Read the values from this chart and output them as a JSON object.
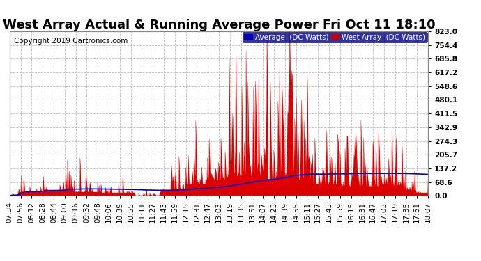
{
  "title": "West Array Actual & Running Average Power Fri Oct 11 18:10",
  "copyright": "Copyright 2019 Cartronics.com",
  "yticks": [
    0.0,
    68.6,
    137.2,
    205.7,
    274.3,
    342.9,
    411.5,
    480.1,
    548.6,
    617.2,
    685.8,
    754.4,
    823.0
  ],
  "ylim": [
    0,
    823.0
  ],
  "legend_avg_label": "Average  (DC Watts)",
  "legend_west_label": "West Array  (DC Watts)",
  "legend_avg_bg": "#0000bb",
  "legend_west_bg": "#cc0000",
  "bg_color": "#ffffff",
  "plot_bg_color": "#ffffff",
  "grid_color": "#aaaaaa",
  "title_fontsize": 13,
  "tick_fontsize": 7.5,
  "copyright_fontsize": 7.5,
  "west_array_color": "#dd0000",
  "avg_color": "#0000cc",
  "xtick_labels": [
    "07:34",
    "07:56",
    "08:12",
    "08:28",
    "08:44",
    "09:00",
    "09:16",
    "09:32",
    "09:48",
    "10:06",
    "10:39",
    "10:55",
    "11:11",
    "11:27",
    "11:43",
    "11:59",
    "12:15",
    "12:31",
    "12:47",
    "13:03",
    "13:19",
    "13:35",
    "13:51",
    "14:07",
    "14:23",
    "14:39",
    "14:55",
    "15:11",
    "15:27",
    "15:43",
    "15:59",
    "16:15",
    "16:31",
    "16:47",
    "17:03",
    "17:19",
    "17:35",
    "17:51",
    "18:07"
  ]
}
